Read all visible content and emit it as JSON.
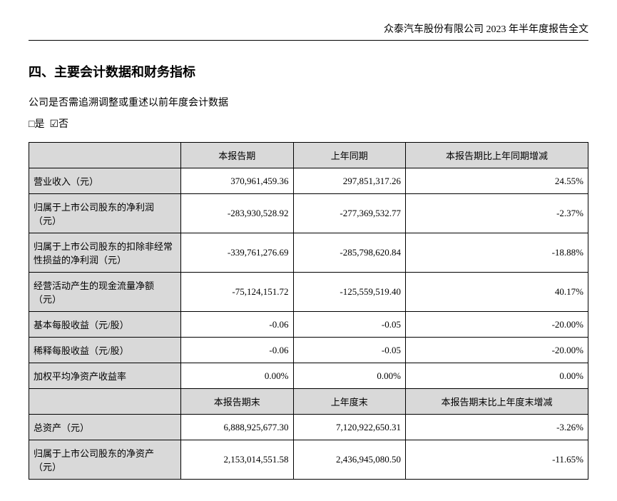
{
  "header": "众泰汽车股份有限公司 2023 年半年度报告全文",
  "section_title": "四、主要会计数据和财务指标",
  "question": "公司是否需追溯调整或重述以前年度会计数据",
  "cb_yes": "□是",
  "cb_no": "☑否",
  "table1": {
    "headers": [
      "",
      "本报告期",
      "上年同期",
      "本报告期比上年同期增减"
    ],
    "rows": [
      {
        "label": "营业收入（元）",
        "c1": "370,961,459.36",
        "c2": "297,851,317.26",
        "c3": "24.55%"
      },
      {
        "label": "归属于上市公司股东的净利润（元）",
        "c1": "-283,930,528.92",
        "c2": "-277,369,532.77",
        "c3": "-2.37%"
      },
      {
        "label": "归属于上市公司股东的扣除非经常性损益的净利润（元）",
        "c1": "-339,761,276.69",
        "c2": "-285,798,620.84",
        "c3": "-18.88%"
      },
      {
        "label": "经营活动产生的现金流量净额（元）",
        "c1": "-75,124,151.72",
        "c2": "-125,559,519.40",
        "c3": "40.17%"
      },
      {
        "label": "基本每股收益（元/股）",
        "c1": "-0.06",
        "c2": "-0.05",
        "c3": "-20.00%"
      },
      {
        "label": "稀释每股收益（元/股）",
        "c1": "-0.06",
        "c2": "-0.05",
        "c3": "-20.00%"
      },
      {
        "label": "加权平均净资产收益率",
        "c1": "0.00%",
        "c2": "0.00%",
        "c3": "0.00%"
      }
    ],
    "sub_headers": [
      "",
      "本报告期末",
      "上年度末",
      "本报告期末比上年度末增减"
    ],
    "rows2": [
      {
        "label": "总资产（元）",
        "c1": "6,888,925,677.30",
        "c2": "7,120,922,650.31",
        "c3": "-3.26%"
      },
      {
        "label": "归属于上市公司股东的净资产（元）",
        "c1": "2,153,014,551.58",
        "c2": "2,436,945,080.50",
        "c3": "-11.65%"
      }
    ]
  }
}
